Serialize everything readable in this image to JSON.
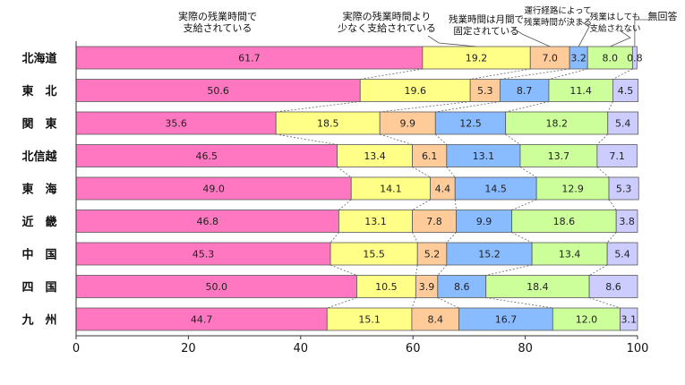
{
  "chart_data": {
    "type": "bar",
    "orientation": "horizontal",
    "stacked": true,
    "title": "",
    "xlabel": "",
    "ylabel": "",
    "xlim": [
      0,
      100
    ],
    "xticks": [
      0,
      20,
      40,
      60,
      80,
      100
    ],
    "grid": false,
    "legend": "top (callout labels above first bar)",
    "categories": [
      "北海道",
      "東　北",
      "関　東",
      "北信越",
      "東　海",
      "近　畿",
      "中　国",
      "四　国",
      "九　州"
    ],
    "series": [
      {
        "name": "実際の残業時間で\n支給されている",
        "color": "#ff77c0",
        "values": [
          61.7,
          50.6,
          35.6,
          46.5,
          49.0,
          46.8,
          45.3,
          50.0,
          44.7
        ]
      },
      {
        "name": "実際の残業時間より\n少なく支給されている",
        "color": "#ffff88",
        "values": [
          19.2,
          19.6,
          18.5,
          13.4,
          14.1,
          13.1,
          15.5,
          10.5,
          15.1
        ]
      },
      {
        "name": "残業時間は月間で\n固定されている",
        "color": "#ffcc99",
        "values": [
          7.0,
          5.3,
          9.9,
          6.1,
          4.4,
          7.8,
          5.2,
          3.9,
          8.4
        ]
      },
      {
        "name": "運行経路によって\n残業時間が決まる",
        "color": "#88bbff",
        "values": [
          3.2,
          8.7,
          12.5,
          13.1,
          14.5,
          9.9,
          15.2,
          8.6,
          16.7
        ]
      },
      {
        "name": "残業はしても\n支給されない",
        "color": "#ccff99",
        "values": [
          8.0,
          11.4,
          18.2,
          13.7,
          12.9,
          18.6,
          13.4,
          18.4,
          12.0
        ]
      },
      {
        "name": "無回答",
        "color": "#ccccff",
        "values": [
          0.8,
          4.5,
          5.4,
          7.1,
          5.3,
          3.8,
          5.4,
          8.6,
          3.1
        ]
      }
    ]
  }
}
